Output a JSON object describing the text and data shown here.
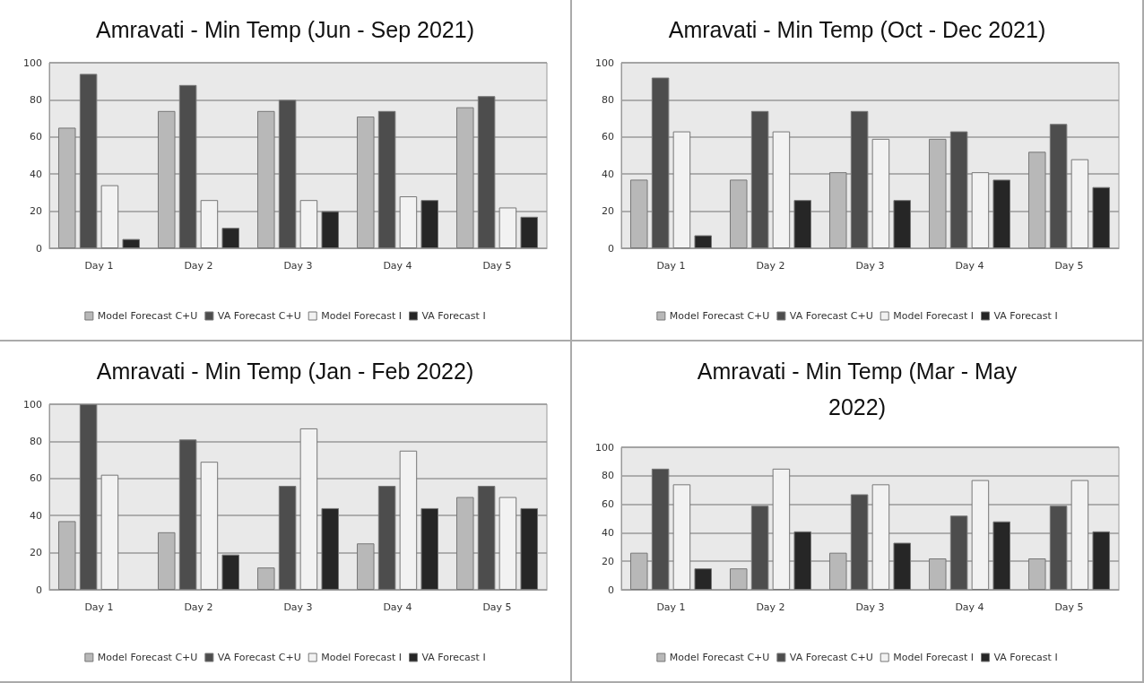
{
  "chart_data": [
    {
      "type": "bar",
      "title": "Amravati - Min Temp (Jun - Sep 2021)",
      "categories": [
        "Day 1",
        "Day 2",
        "Day 3",
        "Day 4",
        "Day 5"
      ],
      "series": [
        {
          "name": "Model Forecast C+U",
          "color": "#b8b8b8",
          "values": [
            65,
            74,
            74,
            71,
            76
          ]
        },
        {
          "name": "VA Forecast C+U",
          "color": "#4d4d4d",
          "values": [
            94,
            88,
            80,
            74,
            82
          ]
        },
        {
          "name": "Model Forecast I",
          "color": "#f2f2f2",
          "values": [
            34,
            26,
            26,
            28,
            22
          ]
        },
        {
          "name": "VA Forecast I",
          "color": "#262626",
          "values": [
            5,
            11,
            20,
            26,
            17
          ]
        }
      ],
      "ylim": [
        0,
        100
      ],
      "yticks": [
        0,
        20,
        40,
        60,
        80,
        100
      ],
      "grid": "y",
      "legend": "bottom"
    },
    {
      "type": "bar",
      "title": "Amravati - Min Temp (Oct - Dec 2021)",
      "categories": [
        "Day 1",
        "Day 2",
        "Day 3",
        "Day 4",
        "Day 5"
      ],
      "series": [
        {
          "name": "Model Forecast C+U",
          "color": "#b8b8b8",
          "values": [
            37,
            37,
            41,
            59,
            52
          ]
        },
        {
          "name": "VA Forecast C+U",
          "color": "#4d4d4d",
          "values": [
            92,
            74,
            74,
            63,
            67
          ]
        },
        {
          "name": "Model Forecast I",
          "color": "#f2f2f2",
          "values": [
            63,
            63,
            59,
            41,
            48
          ]
        },
        {
          "name": "VA Forecast I",
          "color": "#262626",
          "values": [
            7,
            26,
            26,
            37,
            33
          ]
        }
      ],
      "ylim": [
        0,
        100
      ],
      "yticks": [
        0,
        20,
        40,
        60,
        80,
        100
      ],
      "grid": "y",
      "legend": "bottom"
    },
    {
      "type": "bar",
      "title": "Amravati - Min Temp (Jan - Feb 2022)",
      "categories": [
        "Day 1",
        "Day 2",
        "Day 3",
        "Day 4",
        "Day 5"
      ],
      "series": [
        {
          "name": "Model Forecast C+U",
          "color": "#b8b8b8",
          "values": [
            37,
            31,
            12,
            25,
            50
          ]
        },
        {
          "name": "VA Forecast C+U",
          "color": "#4d4d4d",
          "values": [
            100,
            81,
            56,
            56,
            56
          ]
        },
        {
          "name": "Model Forecast I",
          "color": "#f2f2f2",
          "values": [
            62,
            69,
            87,
            75,
            50
          ]
        },
        {
          "name": "VA Forecast I",
          "color": "#262626",
          "values": [
            null,
            19,
            44,
            44,
            44
          ]
        }
      ],
      "ylim": [
        0,
        100
      ],
      "yticks": [
        0,
        20,
        40,
        60,
        80,
        100
      ],
      "grid": "y",
      "legend": "bottom"
    },
    {
      "type": "bar",
      "title": "Amravati - Min Temp (Mar - May\n2022)",
      "categories": [
        "Day 1",
        "Day 2",
        "Day 3",
        "Day 4",
        "Day 5"
      ],
      "series": [
        {
          "name": "Model Forecast C+U",
          "color": "#b8b8b8",
          "values": [
            26,
            15,
            26,
            22,
            22
          ]
        },
        {
          "name": "VA Forecast C+U",
          "color": "#4d4d4d",
          "values": [
            85,
            59,
            67,
            52,
            59
          ]
        },
        {
          "name": "Model Forecast I",
          "color": "#f2f2f2",
          "values": [
            74,
            85,
            74,
            77,
            77
          ]
        },
        {
          "name": "VA Forecast I",
          "color": "#262626",
          "values": [
            15,
            41,
            33,
            48,
            41
          ]
        }
      ],
      "ylim": [
        0,
        100
      ],
      "yticks": [
        0,
        20,
        40,
        60,
        80,
        100
      ],
      "grid": "y",
      "legend": "bottom"
    }
  ]
}
